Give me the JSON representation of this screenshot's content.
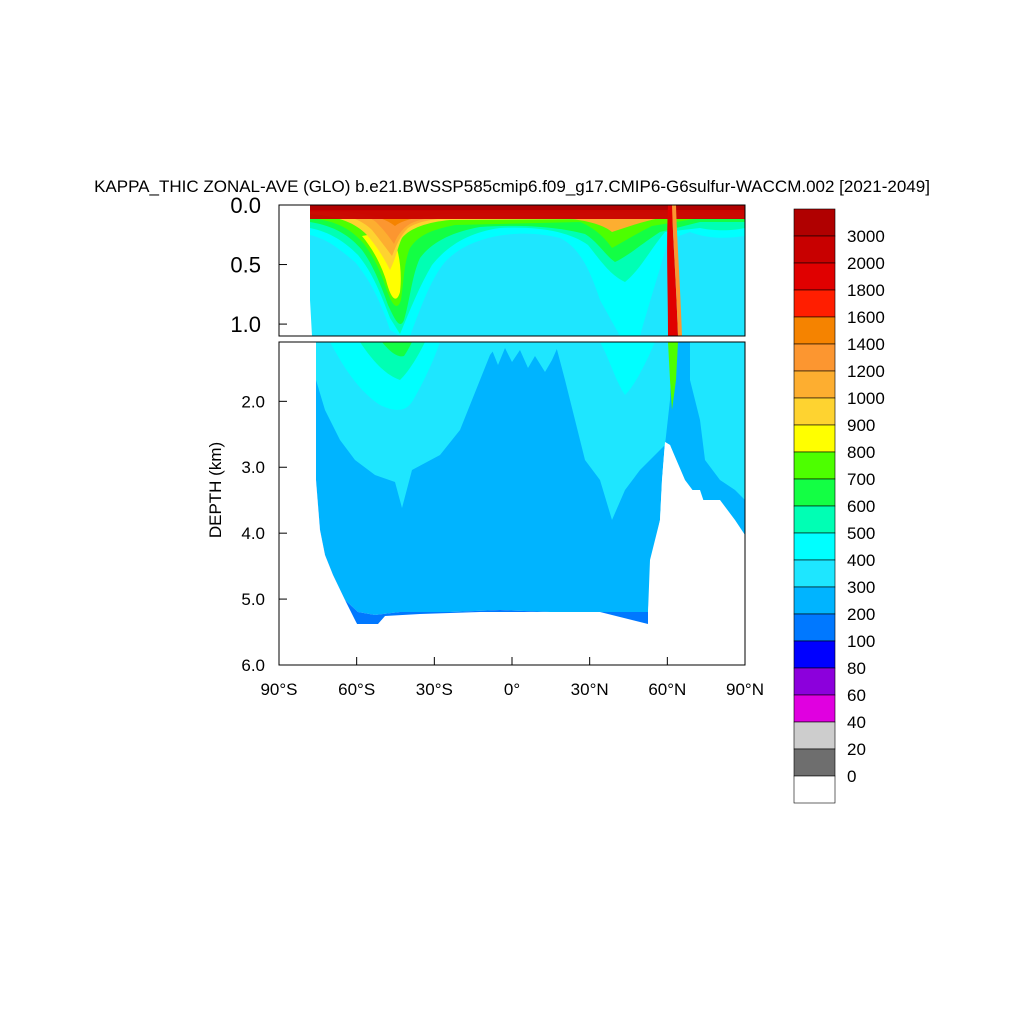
{
  "chart_data": {
    "type": "heatmap",
    "title": "KAPPA_THIC ZONAL-AVE (GLO) b.e21.BWSSP585cmip6.f09_g17.CMIP6-G6sulfur-WACCM.002 [2021-2049]",
    "xlabel": "",
    "ylabel": "DEPTH (km)",
    "xlim": [
      -90,
      90
    ],
    "upper_panel": {
      "ylim": [
        1.1,
        0.0
      ],
      "y_tick_labels": [
        "0.0",
        "0.5",
        "1.0"
      ],
      "y_ticks": [
        0.0,
        0.5,
        1.0
      ]
    },
    "lower_panel": {
      "ylim": [
        6.0,
        1.1
      ],
      "y_tick_labels": [
        "2.0",
        "3.0",
        "4.0",
        "5.0",
        "6.0"
      ],
      "y_ticks": [
        2.0,
        3.0,
        4.0,
        5.0,
        6.0
      ]
    },
    "x_ticks": [
      -90,
      -60,
      -30,
      0,
      30,
      60,
      90
    ],
    "x_tick_labels": [
      "90°S",
      "60°S",
      "30°S",
      "0°",
      "30°N",
      "60°N",
      "90°N"
    ],
    "colorbar": {
      "labels": [
        "3000",
        "2000",
        "1800",
        "1600",
        "1400",
        "1200",
        "1000",
        "900",
        "800",
        "700",
        "600",
        "500",
        "400",
        "300",
        "200",
        "100",
        "80",
        "60",
        "40",
        "20",
        "0"
      ],
      "colors": [
        "#b00000",
        "#c80000",
        "#e00000",
        "#ff1e00",
        "#f58300",
        "#fc9630",
        "#fdae30",
        "#fed330",
        "#ffff00",
        "#4dff00",
        "#13ff44",
        "#00ffb4",
        "#00ffff",
        "#1ee6ff",
        "#00b4ff",
        "#0078ff",
        "#0000ff",
        "#8c00dc",
        "#e000e0",
        "#cdcdcd",
        "#6e6e6e",
        "#ffffff"
      ]
    },
    "grid": false,
    "legend": "right",
    "notes_visible": []
  }
}
